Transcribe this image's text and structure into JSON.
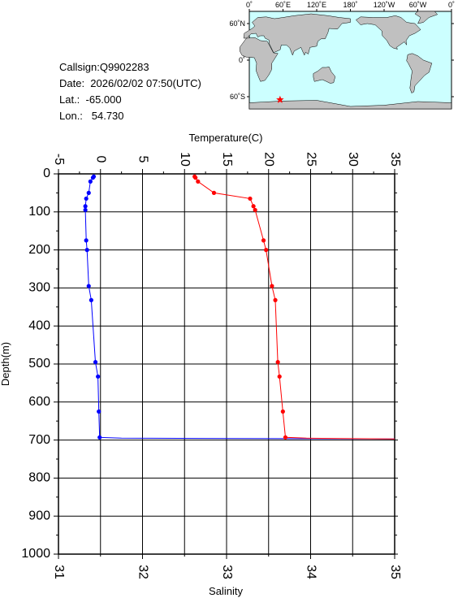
{
  "info": {
    "callsign": "Callsign:Q9902283",
    "date": "Date:  2026/02/02 07:50(UTC)",
    "lat": "Lat.:  -65.000",
    "lon": "Lon.:   54.730"
  },
  "map": {
    "lon_labels": [
      "0˚",
      "60˚E",
      "120˚E",
      "180˚",
      "120˚W",
      "60˚W",
      "0˚"
    ],
    "lat_labels": [
      "60˚N",
      "0˚",
      "60˚S"
    ],
    "station_lon": 54.73,
    "station_lat": -65.0,
    "ocean_color": "#ccffff",
    "land_color": "#c0c0c0",
    "marker_color": "#ff0000"
  },
  "chart_data": {
    "type": "line",
    "title": "",
    "top_axis": {
      "label": "Temperature(C)",
      "range": [
        -5,
        35
      ],
      "ticks": [
        "-5",
        "0",
        "5",
        "10",
        "15",
        "20",
        "25",
        "30",
        "35"
      ]
    },
    "bottom_axis": {
      "label": "Salinity",
      "range": [
        31,
        35
      ],
      "ticks": [
        "31",
        "32",
        "33",
        "34",
        "35"
      ]
    },
    "y_axis": {
      "label": "Depth(m)",
      "range": [
        0,
        1000
      ],
      "reversed": true,
      "ticks": [
        "0",
        "100",
        "200",
        "300",
        "400",
        "500",
        "600",
        "700",
        "800",
        "900",
        "1000"
      ]
    },
    "grid": true,
    "series": [
      {
        "color": "#0000ff",
        "axis": "temperature",
        "depth": [
          7,
          10,
          20,
          50,
          65,
          85,
          95,
          175,
          200,
          295,
          332,
          495,
          533,
          625,
          693,
          695,
          697
        ],
        "values": [
          -0.8,
          -0.9,
          -1.2,
          -1.4,
          -1.7,
          -1.8,
          -1.8,
          -1.7,
          -1.6,
          -1.4,
          -1.1,
          -0.6,
          -0.3,
          -0.2,
          -0.1,
          2.5,
          35.0
        ]
      },
      {
        "color": "#ff0000",
        "axis": "salinity",
        "depth": [
          7,
          10,
          20,
          50,
          65,
          85,
          95,
          175,
          200,
          295,
          332,
          495,
          533,
          625,
          693,
          695,
          697
        ],
        "values": [
          32.62,
          32.63,
          32.66,
          32.85,
          33.28,
          33.32,
          33.34,
          33.44,
          33.47,
          33.54,
          33.58,
          33.61,
          33.63,
          33.67,
          33.7,
          33.95,
          35.0
        ]
      }
    ],
    "markers_per_series": 15
  }
}
